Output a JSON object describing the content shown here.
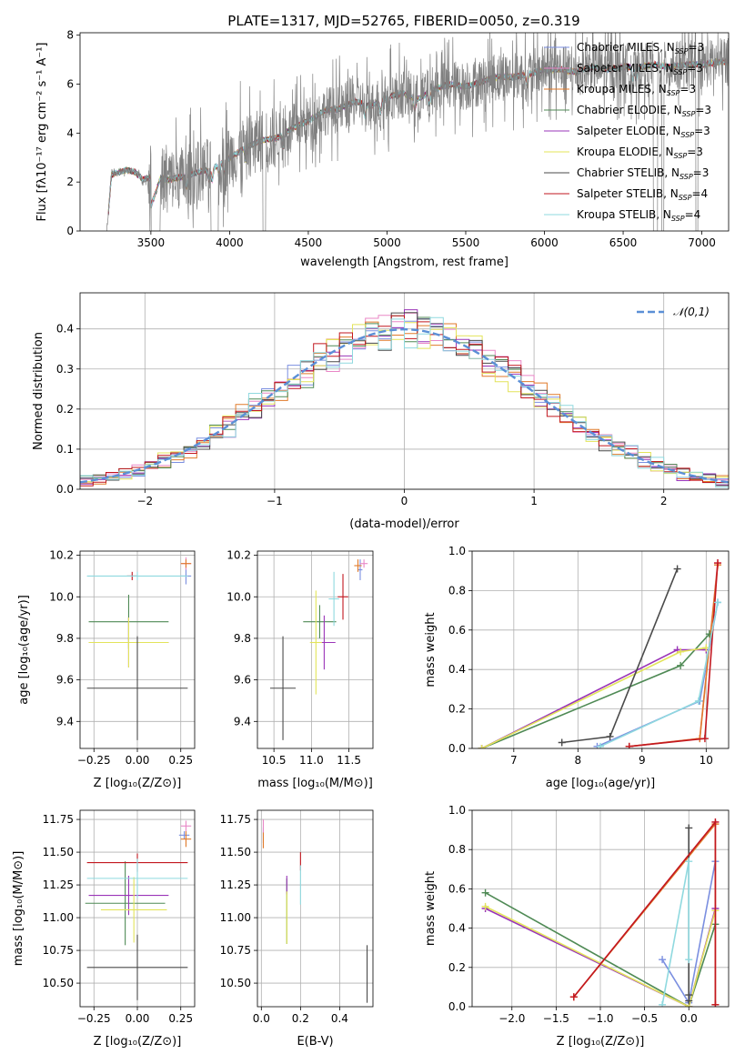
{
  "colors": {
    "Chabrier MILES": "#7b8fe0",
    "Salpeter MILES": "#e987c6",
    "Kroupa MILES": "#e07a2a",
    "Chabrier ELODIE": "#4f8a55",
    "Salpeter ELODIE": "#9a34b8",
    "Kroupa ELODIE": "#e3e45a",
    "Chabrier STELIB": "#4a4a4a",
    "Salpeter STELIB": "#c2171f",
    "Kroupa STELIB": "#8fd9df",
    "data": "#808080",
    "gauss": "#5b8fd6"
  },
  "chart_data": [
    {
      "id": "spectrum",
      "type": "line",
      "title": "PLATE=1317, MJD=52765, FIBERID=0050, z=0.319",
      "xlabel": "wavelength [Angstrom, rest frame]",
      "ylabel": "Flux [fλ10⁻¹⁷ erg cm⁻² s⁻¹ A⁻¹]",
      "xlim": [
        3050,
        7170
      ],
      "ylim": [
        0,
        8.1
      ],
      "xticks": [
        3500,
        4000,
        4500,
        5000,
        5500,
        6000,
        6500,
        7000
      ],
      "yticks": [
        0,
        2,
        4,
        6,
        8
      ],
      "legend_position": "upper right",
      "legend": [
        {
          "name": "Chabrier MILES",
          "nssp": "3"
        },
        {
          "name": "Salpeter MILES",
          "nssp": "3"
        },
        {
          "name": "Kroupa MILES",
          "nssp": "3"
        },
        {
          "name": "Chabrier ELODIE",
          "nssp": "3"
        },
        {
          "name": "Salpeter ELODIE",
          "nssp": "3"
        },
        {
          "name": "Kroupa ELODIE",
          "nssp": "3"
        },
        {
          "name": "Chabrier STELIB",
          "nssp": "3"
        },
        {
          "name": "Salpeter STELIB",
          "nssp": "4"
        },
        {
          "name": "Kroupa STELIB",
          "nssp": "4"
        }
      ],
      "continuum": [
        [
          3220,
          0
        ],
        [
          3250,
          2.3
        ],
        [
          3300,
          2.4
        ],
        [
          3350,
          2.5
        ],
        [
          3400,
          2.4
        ],
        [
          3450,
          2.1
        ],
        [
          3500,
          2.2
        ],
        [
          3600,
          2.1
        ],
        [
          3700,
          2.2
        ],
        [
          3800,
          2.4
        ],
        [
          3900,
          2.6
        ],
        [
          3950,
          2.8
        ],
        [
          4000,
          3.0
        ],
        [
          4100,
          3.4
        ],
        [
          4200,
          3.7
        ],
        [
          4300,
          3.8
        ],
        [
          4400,
          4.2
        ],
        [
          4500,
          4.5
        ],
        [
          4600,
          4.9
        ],
        [
          4700,
          5.0
        ],
        [
          4800,
          5.3
        ],
        [
          4900,
          5.1
        ],
        [
          5000,
          5.5
        ],
        [
          5100,
          5.6
        ],
        [
          5200,
          5.4
        ],
        [
          5300,
          5.8
        ],
        [
          5400,
          6.0
        ],
        [
          5500,
          5.9
        ],
        [
          5600,
          6.1
        ],
        [
          5700,
          6.3
        ],
        [
          5800,
          6.3
        ],
        [
          5900,
          6.4
        ],
        [
          6000,
          6.6
        ],
        [
          6100,
          6.6
        ],
        [
          6200,
          6.5
        ],
        [
          6300,
          6.7
        ],
        [
          6400,
          6.6
        ],
        [
          6500,
          6.7
        ],
        [
          6600,
          6.7
        ],
        [
          6700,
          6.8
        ],
        [
          6800,
          6.7
        ],
        [
          6900,
          6.8
        ],
        [
          7000,
          6.8
        ],
        [
          7100,
          6.9
        ],
        [
          7170,
          6.9
        ]
      ]
    },
    {
      "id": "residuals",
      "type": "histogram",
      "xlabel": "(data-model)/error",
      "ylabel": "Normed distribution",
      "xlim": [
        -2.5,
        2.5
      ],
      "ylim": [
        0,
        0.49
      ],
      "xticks": [
        -2,
        -1,
        0,
        1,
        2
      ],
      "yticks": [
        0.0,
        0.1,
        0.2,
        0.3,
        0.4
      ],
      "grid": true,
      "legend_position": "upper right",
      "legend": [
        "𝒩(0,1)"
      ],
      "bins": {
        "start": -2.5,
        "width": 0.1,
        "count": 50
      }
    },
    {
      "id": "age-vs-Z",
      "type": "errorbar",
      "xlabel": "Z [log₁₀(Z/Z⊙)]",
      "ylabel": "age  [log₁₀(age/yr)]",
      "xlim": [
        -0.33,
        0.33
      ],
      "ylim": [
        9.27,
        10.22
      ],
      "xticks": [
        -0.25,
        0.0,
        0.25
      ],
      "yticks": [
        9.4,
        9.6,
        9.8,
        10.0,
        10.2
      ],
      "grid": true,
      "points": [
        {
          "model": "Chabrier MILES",
          "x": 0.28,
          "xerr": 0.03,
          "y": 10.1,
          "yerr": 0.04
        },
        {
          "model": "Salpeter MILES",
          "x": 0.28,
          "xerr": 0.03,
          "y": 10.16,
          "yerr": 0.03
        },
        {
          "model": "Kroupa MILES",
          "x": 0.28,
          "xerr": 0.03,
          "y": 10.16,
          "yerr": 0.02
        },
        {
          "model": "Chabrier ELODIE",
          "x": -0.05,
          "xerr": 0.23,
          "y": 9.88,
          "yerr": 0.13
        },
        {
          "model": "Salpeter ELODIE",
          "x": -0.05,
          "xerr": 0.23,
          "y": 9.78,
          "yerr": 0.12
        },
        {
          "model": "Kroupa ELODIE",
          "x": -0.05,
          "xerr": 0.23,
          "y": 9.78,
          "yerr": 0.12
        },
        {
          "model": "Chabrier STELIB",
          "x": 0.0,
          "xerr": 0.29,
          "y": 9.56,
          "yerr": 0.25
        },
        {
          "model": "Salpeter STELIB",
          "x": -0.03,
          "xerr": 0.03,
          "y": 10.1,
          "yerr": 0.02
        },
        {
          "model": "Kroupa STELIB",
          "x": 0.0,
          "xerr": 0.29,
          "y": 10.1,
          "yerr": 0.02
        }
      ]
    },
    {
      "id": "age-vs-mass",
      "type": "errorbar",
      "xlabel": "mass [log₁₀(M/M⊙)]",
      "ylabel": "",
      "xlim": [
        10.28,
        11.82
      ],
      "ylim": [
        9.27,
        10.22
      ],
      "xticks": [
        10.5,
        11.0,
        11.5
      ],
      "yticks": [
        9.4,
        9.6,
        9.8,
        10.0,
        10.2
      ],
      "grid": true,
      "points": [
        {
          "model": "Chabrier MILES",
          "x": 11.65,
          "xerr": 0.03,
          "y": 10.13,
          "yerr": 0.05
        },
        {
          "model": "Salpeter MILES",
          "x": 11.7,
          "xerr": 0.05,
          "y": 10.16,
          "yerr": 0.02
        },
        {
          "model": "Kroupa MILES",
          "x": 11.62,
          "xerr": 0.05,
          "y": 10.15,
          "yerr": 0.03
        },
        {
          "model": "Chabrier ELODIE",
          "x": 11.11,
          "xerr": 0.22,
          "y": 9.88,
          "yerr": 0.08
        },
        {
          "model": "Salpeter ELODIE",
          "x": 11.17,
          "xerr": 0.15,
          "y": 9.78,
          "yerr": 0.13
        },
        {
          "model": "Kroupa ELODIE",
          "x": 11.06,
          "xerr": 0.08,
          "y": 9.78,
          "yerr": 0.25
        },
        {
          "model": "Chabrier STELIB",
          "x": 10.62,
          "xerr": 0.17,
          "y": 9.56,
          "yerr": 0.25
        },
        {
          "model": "Salpeter STELIB",
          "x": 11.42,
          "xerr": 0.07,
          "y": 10.0,
          "yerr": 0.11
        },
        {
          "model": "Kroupa STELIB",
          "x": 11.3,
          "xerr": 0.07,
          "y": 9.99,
          "yerr": 0.13
        }
      ]
    },
    {
      "id": "mass-weight-vs-age",
      "type": "line",
      "xlabel": "age  [log₁₀(age/yr)]",
      "ylabel": "mass weight",
      "xlim": [
        6.35,
        10.35
      ],
      "ylim": [
        0.0,
        1.0
      ],
      "xticks": [
        7,
        8,
        9,
        10
      ],
      "yticks": [
        0.0,
        0.2,
        0.4,
        0.6,
        0.8,
        1.0
      ],
      "grid": true,
      "series": [
        {
          "model": "Chabrier MILES",
          "x": [
            8.3,
            9.9,
            10.18
          ],
          "y": [
            0.01,
            0.24,
            0.74
          ]
        },
        {
          "model": "Salpeter MILES",
          "x": [
            8.8,
            9.9,
            10.18
          ],
          "y": [
            0.01,
            0.05,
            0.94
          ]
        },
        {
          "model": "Kroupa MILES",
          "x": [
            8.8,
            9.9,
            10.18
          ],
          "y": [
            0.01,
            0.05,
            0.93
          ]
        },
        {
          "model": "Chabrier ELODIE",
          "x": [
            6.5,
            9.6,
            10.05
          ],
          "y": [
            0.0,
            0.42,
            0.58
          ]
        },
        {
          "model": "Salpeter ELODIE",
          "x": [
            6.5,
            9.55,
            10.0
          ],
          "y": [
            0.0,
            0.5,
            0.5
          ]
        },
        {
          "model": "Kroupa ELODIE",
          "x": [
            6.5,
            9.6,
            10.0
          ],
          "y": [
            0.0,
            0.49,
            0.51
          ]
        },
        {
          "model": "Chabrier STELIB",
          "x": [
            7.75,
            8.5,
            9.55
          ],
          "y": [
            0.03,
            0.06,
            0.91
          ]
        },
        {
          "model": "Salpeter STELIB",
          "x": [
            8.8,
            9.98,
            10.18
          ],
          "y": [
            0.01,
            0.05,
            0.94
          ]
        },
        {
          "model": "Kroupa STELIB",
          "x": [
            8.35,
            9.88,
            10.18
          ],
          "y": [
            0.01,
            0.24,
            0.74
          ]
        }
      ]
    },
    {
      "id": "mass-vs-Z",
      "type": "errorbar",
      "xlabel": "Z [log₁₀(Z/Z⊙)]",
      "ylabel": "mass [log₁₀(M/M⊙)]",
      "xlim": [
        -0.33,
        0.33
      ],
      "ylim": [
        10.32,
        11.82
      ],
      "xticks": [
        -0.25,
        0.0,
        0.25
      ],
      "yticks": [
        10.5,
        10.75,
        11.0,
        11.25,
        11.5,
        11.75
      ],
      "grid": true,
      "points": [
        {
          "model": "Chabrier MILES",
          "x": 0.27,
          "xerr": 0.03,
          "y": 11.63,
          "yerr": 0.03
        },
        {
          "model": "Salpeter MILES",
          "x": 0.28,
          "xerr": 0.03,
          "y": 11.7,
          "yerr": 0.04
        },
        {
          "model": "Kroupa MILES",
          "x": 0.28,
          "xerr": 0.03,
          "y": 11.6,
          "yerr": 0.06
        },
        {
          "model": "Chabrier ELODIE",
          "x": -0.07,
          "xerr": 0.23,
          "y": 11.11,
          "yerr": 0.32
        },
        {
          "model": "Salpeter ELODIE",
          "x": -0.05,
          "xerr": 0.23,
          "y": 11.17,
          "yerr": 0.15
        },
        {
          "model": "Kroupa ELODIE",
          "x": -0.02,
          "xerr": 0.19,
          "y": 11.06,
          "yerr": 0.25
        },
        {
          "model": "Chabrier STELIB",
          "x": 0.0,
          "xerr": 0.29,
          "y": 10.62,
          "yerr": 0.25
        },
        {
          "model": "Salpeter STELIB",
          "x": 0.0,
          "xerr": 0.29,
          "y": 11.42,
          "yerr": 0.07
        },
        {
          "model": "Kroupa STELIB",
          "x": 0.0,
          "xerr": 0.29,
          "y": 11.3,
          "yerr": 0.15
        }
      ]
    },
    {
      "id": "mass-vs-ebv",
      "type": "errorbar",
      "xlabel": "E(B-V)",
      "ylabel": "",
      "xlim": [
        -0.02,
        0.57
      ],
      "ylim": [
        10.32,
        11.82
      ],
      "xticks": [
        0.0,
        0.2,
        0.4
      ],
      "yticks": [
        10.5,
        10.75,
        11.0,
        11.25,
        11.5,
        11.75
      ],
      "grid": true,
      "points": [
        {
          "model": "Chabrier MILES",
          "x": 0.01,
          "xerr": 0.0,
          "y": 11.63,
          "yerr": 0.06
        },
        {
          "model": "Salpeter MILES",
          "x": 0.01,
          "xerr": 0.0,
          "y": 11.7,
          "yerr": 0.05
        },
        {
          "model": "Kroupa MILES",
          "x": 0.01,
          "xerr": 0.0,
          "y": 11.59,
          "yerr": 0.06
        },
        {
          "model": "Chabrier ELODIE",
          "x": 0.13,
          "xerr": 0.0,
          "y": 11.05,
          "yerr": 0.25
        },
        {
          "model": "Salpeter ELODIE",
          "x": 0.13,
          "xerr": 0.0,
          "y": 11.25,
          "yerr": 0.07
        },
        {
          "model": "Kroupa ELODIE",
          "x": 0.13,
          "xerr": 0.0,
          "y": 11.0,
          "yerr": 0.2
        },
        {
          "model": "Chabrier STELIB",
          "x": 0.54,
          "xerr": 0.0,
          "y": 10.57,
          "yerr": 0.22
        },
        {
          "model": "Salpeter STELIB",
          "x": 0.2,
          "xerr": 0.0,
          "y": 11.43,
          "yerr": 0.07
        },
        {
          "model": "Kroupa STELIB",
          "x": 0.2,
          "xerr": 0.0,
          "y": 11.25,
          "yerr": 0.15
        }
      ]
    },
    {
      "id": "mass-weight-vs-Z",
      "type": "line",
      "xlabel": "Z [log₁₀(Z/Z⊙)]",
      "ylabel": "mass weight",
      "xlim": [
        -2.45,
        0.45
      ],
      "ylim": [
        0.0,
        1.0
      ],
      "xticks": [
        -2.0,
        -1.5,
        -1.0,
        -0.5,
        0.0
      ],
      "yticks": [
        0.0,
        0.2,
        0.4,
        0.6,
        0.8,
        1.0
      ],
      "grid": true,
      "series": [
        {
          "model": "Chabrier MILES",
          "x": [
            -0.3,
            0.0,
            0.3
          ],
          "y": [
            0.24,
            0.02,
            0.74
          ]
        },
        {
          "model": "Salpeter MILES",
          "x": [
            -1.3,
            0.3,
            0.3
          ],
          "y": [
            0.05,
            0.94,
            0.01
          ]
        },
        {
          "model": "Kroupa MILES",
          "x": [
            -1.3,
            0.3,
            0.3
          ],
          "y": [
            0.05,
            0.93,
            0.01
          ]
        },
        {
          "model": "Chabrier ELODIE",
          "x": [
            -2.3,
            0.0,
            0.3
          ],
          "y": [
            0.58,
            0.0,
            0.42
          ]
        },
        {
          "model": "Salpeter ELODIE",
          "x": [
            -2.3,
            0.0,
            0.3
          ],
          "y": [
            0.5,
            0.0,
            0.5
          ]
        },
        {
          "model": "Kroupa ELODIE",
          "x": [
            -2.3,
            0.0,
            0.3
          ],
          "y": [
            0.51,
            0.0,
            0.49
          ]
        },
        {
          "model": "Chabrier STELIB",
          "x": [
            0.0,
            0.0,
            0.0
          ],
          "y": [
            0.03,
            0.06,
            0.91
          ]
        },
        {
          "model": "Salpeter STELIB",
          "x": [
            -1.3,
            0.3,
            0.3
          ],
          "y": [
            0.05,
            0.94,
            0.01
          ]
        },
        {
          "model": "Kroupa STELIB",
          "x": [
            -0.3,
            0.0,
            0.0
          ],
          "y": [
            0.01,
            0.74,
            0.24
          ]
        }
      ]
    }
  ]
}
